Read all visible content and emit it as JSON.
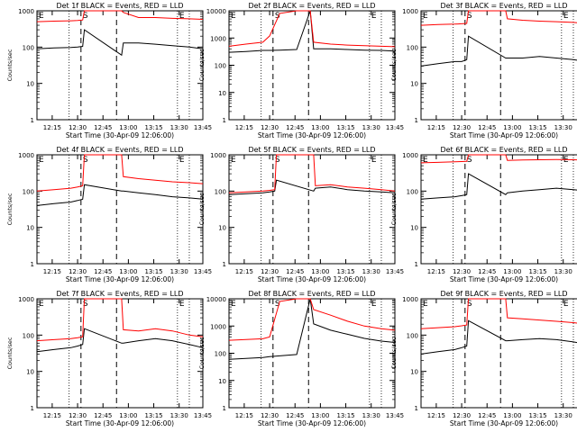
{
  "figure": {
    "x_title": "Start Time (30-Apr-09 12:06:00)",
    "y_title": "Counts/sec",
    "x_tick_labels": [
      "12:15",
      "12:30",
      "12:45",
      "13:00",
      "13:15",
      "13:30",
      "13:45"
    ],
    "y_tick_labels": [
      "1",
      "10",
      "100",
      "1000",
      "10000"
    ],
    "start_marker": "S",
    "end_marker": "E",
    "colors": {
      "events": "#000000",
      "lld": "#ff0000"
    }
  },
  "chart_data": [
    {
      "type": "line",
      "title": "Det 1f BLACK = Events, RED = LLD",
      "yscale": "log",
      "ylim": [
        1,
        1000
      ],
      "x_unit": "minutes after 12:06:00",
      "series": [
        {
          "name": "Events",
          "x": [
            0,
            10,
            20,
            24,
            27,
            28,
            50,
            51,
            60,
            70,
            80,
            90,
            98
          ],
          "values": [
            90,
            95,
            98,
            100,
            105,
            300,
            60,
            130,
            130,
            120,
            110,
            100,
            90
          ]
        },
        {
          "name": "LLD",
          "x": [
            0,
            10,
            20,
            24,
            27,
            28,
            50,
            51,
            60,
            70,
            80,
            90,
            98
          ],
          "values": [
            500,
            520,
            530,
            540,
            560,
            1000,
            1000,
            900,
            650,
            650,
            620,
            600,
            580
          ]
        }
      ]
    },
    {
      "type": "line",
      "title": "Det 2f BLACK = Events, RED = LLD",
      "yscale": "log",
      "ylim": [
        1,
        10000
      ],
      "x_unit": "minutes after 12:06:00",
      "series": [
        {
          "name": "Events",
          "x": [
            0,
            10,
            20,
            24,
            30,
            40,
            48,
            50,
            60,
            70,
            80,
            90,
            98
          ],
          "values": [
            300,
            320,
            350,
            350,
            360,
            380,
            10000,
            400,
            400,
            380,
            360,
            350,
            330
          ]
        },
        {
          "name": "LLD",
          "x": [
            0,
            10,
            20,
            24,
            30,
            40,
            48,
            50,
            60,
            70,
            80,
            90,
            98
          ],
          "values": [
            500,
            600,
            700,
            1200,
            8000,
            10000,
            10000,
            700,
            600,
            550,
            520,
            500,
            480
          ]
        }
      ]
    },
    {
      "type": "line",
      "title": "Det 3f BLACK = Events, RED = LLD",
      "yscale": "log",
      "ylim": [
        1,
        1000
      ],
      "x_unit": "minutes after 12:06:00",
      "series": [
        {
          "name": "Events",
          "x": [
            0,
            10,
            20,
            24,
            27,
            28,
            50,
            51,
            60,
            70,
            80,
            90,
            98
          ],
          "values": [
            30,
            35,
            40,
            40,
            45,
            200,
            50,
            50,
            50,
            55,
            50,
            45,
            40
          ]
        },
        {
          "name": "LLD",
          "x": [
            0,
            10,
            20,
            24,
            27,
            28,
            50,
            51,
            60,
            70,
            80,
            90,
            98
          ],
          "values": [
            400,
            420,
            430,
            440,
            450,
            1000,
            1000,
            600,
            550,
            520,
            500,
            480,
            450
          ]
        }
      ]
    },
    {
      "type": "line",
      "title": "Det 4f BLACK = Events, RED = LLD",
      "yscale": "log",
      "ylim": [
        1,
        1000
      ],
      "x_unit": "minutes after 12:06:00",
      "series": [
        {
          "name": "Events",
          "x": [
            0,
            10,
            20,
            24,
            27,
            28,
            50,
            51,
            60,
            70,
            80,
            90,
            98
          ],
          "values": [
            40,
            45,
            50,
            55,
            60,
            150,
            100,
            100,
            90,
            80,
            70,
            65,
            60
          ]
        },
        {
          "name": "LLD",
          "x": [
            0,
            10,
            20,
            24,
            27,
            28,
            50,
            51,
            60,
            70,
            80,
            90,
            98
          ],
          "values": [
            100,
            110,
            120,
            130,
            140,
            1000,
            1000,
            250,
            220,
            200,
            180,
            170,
            160
          ]
        }
      ]
    },
    {
      "type": "line",
      "title": "Det 5f BLACK = Events, RED = LLD",
      "yscale": "log",
      "ylim": [
        1,
        1000
      ],
      "x_unit": "minutes after 12:06:00",
      "series": [
        {
          "name": "Events",
          "x": [
            0,
            10,
            20,
            24,
            27,
            28,
            50,
            51,
            60,
            70,
            80,
            90,
            98
          ],
          "values": [
            80,
            85,
            90,
            95,
            100,
            200,
            100,
            120,
            130,
            110,
            100,
            95,
            90
          ]
        },
        {
          "name": "LLD",
          "x": [
            0,
            10,
            20,
            24,
            27,
            28,
            50,
            51,
            60,
            70,
            80,
            90,
            98
          ],
          "values": [
            90,
            95,
            100,
            105,
            110,
            1000,
            1000,
            140,
            150,
            130,
            120,
            110,
            100
          ]
        }
      ]
    },
    {
      "type": "line",
      "title": "Det 6f BLACK = Events, RED = LLD",
      "yscale": "log",
      "ylim": [
        1,
        1000
      ],
      "x_unit": "minutes after 12:06:00",
      "series": [
        {
          "name": "Events",
          "x": [
            0,
            10,
            20,
            24,
            27,
            28,
            50,
            51,
            60,
            70,
            80,
            90,
            98
          ],
          "values": [
            60,
            65,
            70,
            75,
            80,
            300,
            80,
            90,
            100,
            110,
            120,
            110,
            100
          ]
        },
        {
          "name": "LLD",
          "x": [
            0,
            10,
            20,
            24,
            27,
            28,
            50,
            51,
            60,
            70,
            80,
            90,
            98
          ],
          "values": [
            600,
            620,
            640,
            650,
            660,
            1000,
            1000,
            700,
            720,
            730,
            740,
            730,
            720
          ]
        }
      ]
    },
    {
      "type": "line",
      "title": "Det 7f BLACK = Events, RED = LLD",
      "yscale": "log",
      "ylim": [
        1,
        1000
      ],
      "x_unit": "minutes after 12:06:00",
      "series": [
        {
          "name": "Events",
          "x": [
            0,
            10,
            20,
            24,
            27,
            28,
            50,
            51,
            60,
            70,
            80,
            90,
            98
          ],
          "values": [
            35,
            40,
            45,
            50,
            55,
            150,
            60,
            60,
            70,
            80,
            70,
            55,
            45
          ]
        },
        {
          "name": "LLD",
          "x": [
            0,
            10,
            20,
            24,
            27,
            28,
            50,
            51,
            60,
            70,
            80,
            90,
            98
          ],
          "values": [
            70,
            75,
            80,
            85,
            90,
            1000,
            1000,
            140,
            130,
            150,
            130,
            100,
            90
          ]
        }
      ]
    },
    {
      "type": "line",
      "title": "Det 8f BLACK = Events, RED = LLD",
      "yscale": "log",
      "ylim": [
        1,
        10000
      ],
      "x_unit": "minutes after 12:06:00",
      "series": [
        {
          "name": "Events",
          "x": [
            0,
            10,
            20,
            24,
            30,
            40,
            48,
            50,
            60,
            70,
            80,
            90,
            98
          ],
          "values": [
            60,
            65,
            70,
            75,
            80,
            90,
            10000,
            1200,
            700,
            500,
            350,
            280,
            250
          ]
        },
        {
          "name": "LLD",
          "x": [
            0,
            10,
            20,
            24,
            30,
            40,
            48,
            50,
            60,
            70,
            80,
            90,
            98
          ],
          "values": [
            300,
            320,
            340,
            400,
            8000,
            10000,
            10000,
            4000,
            2500,
            1500,
            1000,
            800,
            700
          ]
        }
      ]
    },
    {
      "type": "line",
      "title": "Det 9f BLACK = Events, RED = LLD",
      "yscale": "log",
      "ylim": [
        1,
        1000
      ],
      "x_unit": "minutes after 12:06:00",
      "series": [
        {
          "name": "Events",
          "x": [
            0,
            10,
            20,
            24,
            27,
            28,
            50,
            51,
            60,
            70,
            80,
            90,
            98
          ],
          "values": [
            30,
            35,
            40,
            45,
            50,
            250,
            70,
            70,
            75,
            80,
            75,
            65,
            55
          ]
        },
        {
          "name": "LLD",
          "x": [
            0,
            10,
            20,
            24,
            27,
            28,
            50,
            51,
            60,
            70,
            80,
            90,
            98
          ],
          "values": [
            150,
            160,
            170,
            180,
            190,
            1000,
            1000,
            300,
            280,
            260,
            240,
            220,
            200
          ]
        }
      ]
    }
  ]
}
